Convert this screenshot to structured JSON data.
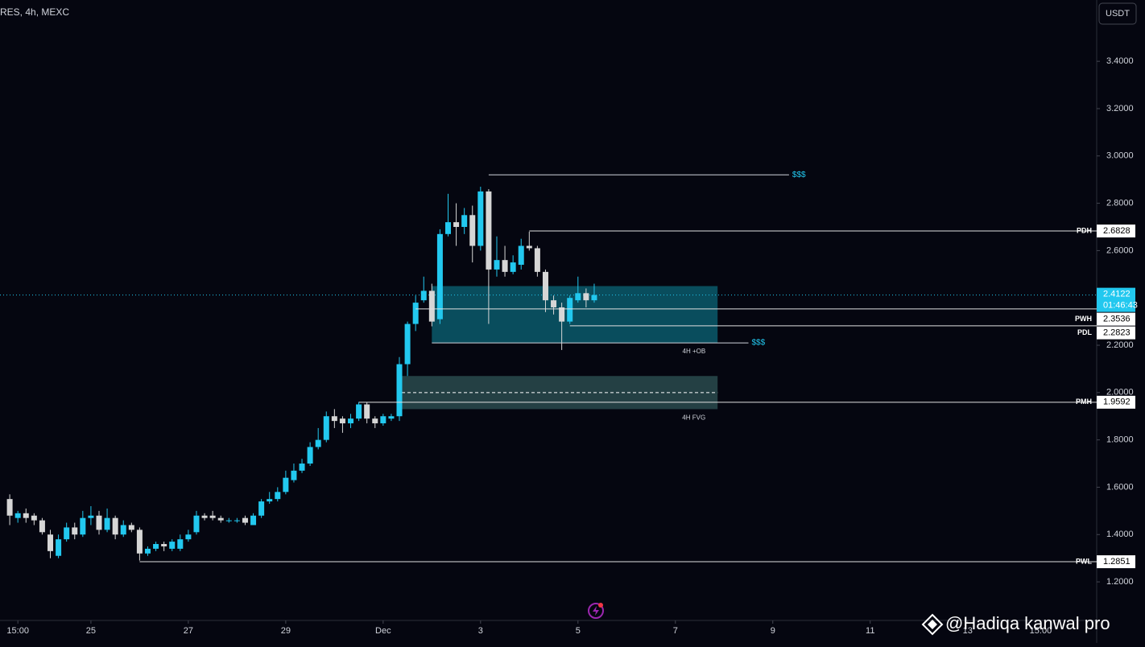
{
  "chart_data": {
    "type": "candlestick",
    "title": "RES, 4h, MEXC",
    "currency": "USDT",
    "watermark": "@Hadiqa kanwal pro",
    "up_color": "#22c8ef",
    "down_color": "#d6d6d6",
    "x": [
      1,
      2,
      3,
      4,
      5,
      6,
      7,
      8,
      9,
      10,
      11,
      12,
      13,
      14,
      15,
      16,
      17,
      18,
      19,
      20,
      21,
      22,
      23,
      24,
      25,
      26,
      27,
      28,
      29,
      30,
      31,
      32,
      33,
      34,
      35,
      36,
      37,
      38,
      39,
      40,
      41,
      42,
      43,
      44,
      45,
      46,
      47,
      48,
      49,
      50,
      51,
      52,
      53,
      54,
      55,
      56,
      57,
      58,
      59,
      60,
      61,
      62,
      63,
      64,
      65,
      66,
      67,
      68,
      69,
      70,
      71,
      72,
      73
    ],
    "open": [
      1.55,
      1.47,
      1.49,
      1.48,
      1.46,
      1.4,
      1.31,
      1.38,
      1.43,
      1.4,
      1.47,
      1.48,
      1.42,
      1.47,
      1.4,
      1.44,
      1.42,
      1.32,
      1.34,
      1.36,
      1.34,
      1.34,
      1.38,
      1.41,
      1.48,
      1.48,
      1.47,
      1.46,
      1.46,
      1.47,
      1.44,
      1.48,
      1.54,
      1.55,
      1.58,
      1.63,
      1.67,
      1.7,
      1.77,
      1.8,
      1.9,
      1.89,
      1.87,
      1.89,
      1.95,
      1.89,
      1.87,
      1.89,
      1.9,
      2.12,
      2.29,
      2.39,
      2.43,
      2.31,
      2.67,
      2.72,
      2.7,
      2.75,
      2.62,
      2.85,
      2.52,
      2.56,
      2.51,
      2.54,
      2.62,
      2.61,
      2.51,
      2.39,
      2.36,
      2.3,
      2.39,
      2.42,
      2.39
    ],
    "high": [
      1.57,
      1.5,
      1.51,
      1.49,
      1.47,
      1.42,
      1.4,
      1.45,
      1.45,
      1.5,
      1.52,
      1.5,
      1.51,
      1.48,
      1.46,
      1.45,
      1.43,
      1.35,
      1.37,
      1.37,
      1.38,
      1.4,
      1.42,
      1.5,
      1.49,
      1.5,
      1.48,
      1.47,
      1.47,
      1.48,
      1.49,
      1.55,
      1.58,
      1.6,
      1.67,
      1.7,
      1.72,
      1.79,
      1.85,
      1.92,
      1.93,
      1.9,
      1.91,
      1.96,
      1.96,
      1.9,
      1.91,
      1.91,
      2.15,
      2.3,
      2.41,
      2.49,
      2.46,
      2.69,
      2.84,
      2.8,
      2.78,
      2.79,
      2.87,
      2.86,
      2.66,
      2.62,
      2.58,
      2.65,
      2.68,
      2.62,
      2.52,
      2.41,
      2.38,
      2.41,
      2.49,
      2.44,
      2.46
    ],
    "low": [
      1.44,
      1.45,
      1.45,
      1.44,
      1.4,
      1.3,
      1.3,
      1.37,
      1.38,
      1.39,
      1.44,
      1.4,
      1.41,
      1.38,
      1.39,
      1.41,
      1.29,
      1.31,
      1.33,
      1.33,
      1.33,
      1.33,
      1.37,
      1.4,
      1.46,
      1.46,
      1.45,
      1.45,
      1.45,
      1.44,
      1.44,
      1.47,
      1.53,
      1.54,
      1.57,
      1.62,
      1.66,
      1.69,
      1.76,
      1.79,
      1.85,
      1.83,
      1.85,
      1.88,
      1.87,
      1.85,
      1.86,
      1.88,
      1.88,
      2.07,
      2.26,
      2.38,
      2.28,
      2.29,
      2.66,
      2.62,
      2.67,
      2.55,
      2.6,
      2.29,
      2.49,
      2.49,
      2.5,
      2.52,
      2.6,
      2.49,
      2.34,
      2.33,
      2.18,
      2.29,
      2.38,
      2.36,
      2.38
    ],
    "close": [
      1.48,
      1.49,
      1.47,
      1.46,
      1.41,
      1.33,
      1.38,
      1.43,
      1.4,
      1.47,
      1.48,
      1.42,
      1.47,
      1.4,
      1.44,
      1.42,
      1.32,
      1.34,
      1.36,
      1.35,
      1.37,
      1.38,
      1.4,
      1.48,
      1.47,
      1.47,
      1.46,
      1.46,
      1.46,
      1.45,
      1.48,
      1.54,
      1.55,
      1.58,
      1.64,
      1.67,
      1.7,
      1.77,
      1.8,
      1.9,
      1.88,
      1.87,
      1.89,
      1.95,
      1.89,
      1.87,
      1.9,
      1.9,
      2.12,
      2.29,
      2.38,
      2.43,
      2.3,
      2.67,
      2.72,
      2.7,
      2.75,
      2.62,
      2.85,
      2.52,
      2.56,
      2.51,
      2.55,
      2.62,
      2.61,
      2.51,
      2.39,
      2.36,
      2.3,
      2.4,
      2.42,
      2.39,
      2.4122
    ],
    "xlim": [
      -0.2,
      134.9
    ],
    "xticks": [
      {
        "value": 2,
        "label": "15:00"
      },
      {
        "value": 11,
        "label": "25"
      },
      {
        "value": 23,
        "label": "27"
      },
      {
        "value": 35,
        "label": "29"
      },
      {
        "value": 47,
        "label": "Dec"
      },
      {
        "value": 59,
        "label": "3"
      },
      {
        "value": 71,
        "label": "5"
      },
      {
        "value": 83,
        "label": "7"
      },
      {
        "value": 95,
        "label": "9"
      },
      {
        "value": 107,
        "label": "11"
      },
      {
        "value": 119,
        "label": "13"
      },
      {
        "value": 128,
        "label": "15:00"
      }
    ],
    "ylim": [
      1.037,
      3.659
    ],
    "yticks": [
      {
        "value": 1.2,
        "label": "1.2000"
      },
      {
        "value": 1.4,
        "label": "1.4000"
      },
      {
        "value": 1.6,
        "label": "1.6000"
      },
      {
        "value": 1.8,
        "label": "1.8000"
      },
      {
        "value": 2.0,
        "label": "2.0000"
      },
      {
        "value": 2.2,
        "label": "2.2000"
      },
      {
        "value": 2.4,
        "label": "2.4000"
      },
      {
        "value": 2.6,
        "label": "2.6000"
      },
      {
        "value": 2.8,
        "label": "2.8000"
      },
      {
        "value": 3.0,
        "label": "3.0000"
      },
      {
        "value": 3.2,
        "label": "3.2000"
      },
      {
        "value": 3.4,
        "label": "3.4000"
      }
    ],
    "last_price": {
      "value": 2.4122,
      "countdown": "01:46:43"
    },
    "levels": [
      {
        "label": "PDH",
        "value": 2.6828,
        "start": 65
      },
      {
        "label": "PWH",
        "value": 2.3536,
        "start": 51
      },
      {
        "label": "PDL",
        "value": 2.2823,
        "start": 70
      },
      {
        "label": "PMH",
        "value": 1.9592,
        "start": 44
      },
      {
        "label": "PWL",
        "value": 1.2851,
        "start": 17
      }
    ],
    "liquidity": [
      {
        "label": "$$$",
        "value": 2.92,
        "start": 60,
        "end": 97
      },
      {
        "label": "$$$",
        "value": 2.21,
        "start": 53,
        "end": 92
      }
    ],
    "zones": [
      {
        "label": "4H +OB",
        "top": 2.45,
        "bottom": 2.21,
        "start": 53,
        "end": 88.2
      },
      {
        "label": "4H FVG",
        "top": 2.07,
        "bottom": 1.93,
        "mid": 2.0,
        "start": 49.3,
        "end": 88.2
      }
    ]
  }
}
